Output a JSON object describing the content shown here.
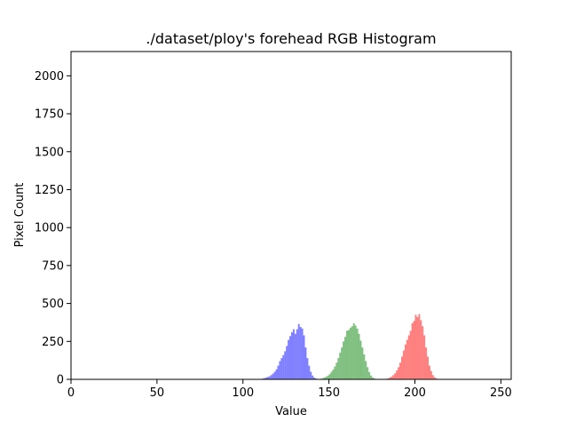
{
  "chart_data": {
    "type": "bar",
    "title": "./dataset/ploy's forehead RGB Histogram",
    "xlabel": "Value",
    "ylabel": "Pixel Count",
    "xlim": [
      0,
      256
    ],
    "ylim": [
      0,
      2160
    ],
    "xticks": [
      0,
      50,
      100,
      150,
      200,
      250
    ],
    "yticks": [
      0,
      250,
      500,
      750,
      1000,
      1250,
      1500,
      1750,
      2000
    ],
    "grid": false,
    "legend": "none",
    "bin_width": 1,
    "series": [
      {
        "color": "#0000ff",
        "opacity": 0.5,
        "x": [
          110,
          111,
          112,
          113,
          114,
          115,
          116,
          117,
          118,
          119,
          120,
          121,
          122,
          123,
          124,
          125,
          126,
          127,
          128,
          129,
          130,
          131,
          132,
          133,
          134,
          135,
          136,
          137,
          138,
          139,
          140,
          141,
          142,
          143,
          144,
          145
        ],
        "values": [
          3,
          5,
          8,
          12,
          16,
          20,
          28,
          38,
          50,
          66,
          90,
          120,
          140,
          160,
          185,
          220,
          260,
          285,
          310,
          330,
          300,
          330,
          365,
          345,
          335,
          290,
          210,
          140,
          90,
          50,
          25,
          12,
          6,
          3,
          2,
          1
        ]
      },
      {
        "color": "#008000",
        "opacity": 0.5,
        "x": [
          144,
          145,
          146,
          147,
          148,
          149,
          150,
          151,
          152,
          153,
          154,
          155,
          156,
          157,
          158,
          159,
          160,
          161,
          162,
          163,
          164,
          165,
          166,
          167,
          168,
          169,
          170,
          171,
          172,
          173,
          174,
          175,
          176,
          177,
          178
        ],
        "values": [
          2,
          4,
          8,
          12,
          18,
          25,
          35,
          50,
          65,
          85,
          110,
          140,
          175,
          210,
          250,
          280,
          320,
          325,
          340,
          350,
          370,
          355,
          335,
          300,
          255,
          210,
          165,
          120,
          80,
          48,
          25,
          12,
          6,
          3,
          1
        ]
      },
      {
        "color": "#ff0000",
        "opacity": 0.5,
        "x": [
          182,
          183,
          184,
          185,
          186,
          187,
          188,
          189,
          190,
          191,
          192,
          193,
          194,
          195,
          196,
          197,
          198,
          199,
          200,
          201,
          202,
          203,
          204,
          205,
          206,
          207,
          208,
          209,
          210,
          211,
          212,
          213,
          214
        ],
        "values": [
          2,
          4,
          7,
          12,
          18,
          28,
          40,
          58,
          80,
          110,
          150,
          190,
          230,
          260,
          290,
          320,
          370,
          385,
          425,
          410,
          430,
          390,
          350,
          290,
          210,
          150,
          90,
          55,
          28,
          14,
          7,
          3,
          1
        ]
      }
    ]
  }
}
